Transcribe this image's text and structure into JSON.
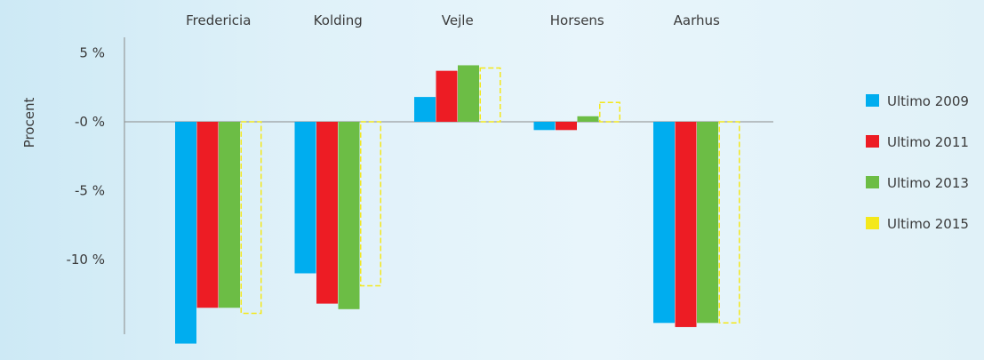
{
  "chart_data": {
    "type": "bar",
    "title": "",
    "xlabel": "",
    "ylabel": "Procent",
    "categories": [
      "Fredericia",
      "Kolding",
      "Vejle",
      "Horsens",
      "Aarhus"
    ],
    "series": [
      {
        "name": "Ultimo 2009",
        "values": [
          -16.1,
          -11.0,
          1.8,
          -0.6,
          -14.6
        ],
        "color": "#00adef",
        "style": "solid"
      },
      {
        "name": "Ultimo 2011",
        "values": [
          -13.5,
          -13.2,
          3.7,
          -0.6,
          -14.9
        ],
        "color": "#ed1c24",
        "style": "solid"
      },
      {
        "name": "Ultimo 2013",
        "values": [
          -13.5,
          -13.6,
          4.1,
          0.4,
          -14.6
        ],
        "color": "#6cbd45",
        "style": "solid"
      },
      {
        "name": "Ultimo 2015",
        "values": [
          -13.9,
          -11.9,
          3.9,
          1.4,
          -14.6
        ],
        "color": "#f4e81b",
        "style": "dashed"
      }
    ],
    "yticks": [
      {
        "value": 5,
        "label": "5 %"
      },
      {
        "value": 0,
        "label": "-0 %"
      },
      {
        "value": -5,
        "label": "-5 %"
      },
      {
        "value": -10,
        "label": "-10 %"
      }
    ],
    "ylim": [
      -15,
      5
    ],
    "grid": false,
    "legend_position": "right",
    "category_axis_position": "top"
  }
}
